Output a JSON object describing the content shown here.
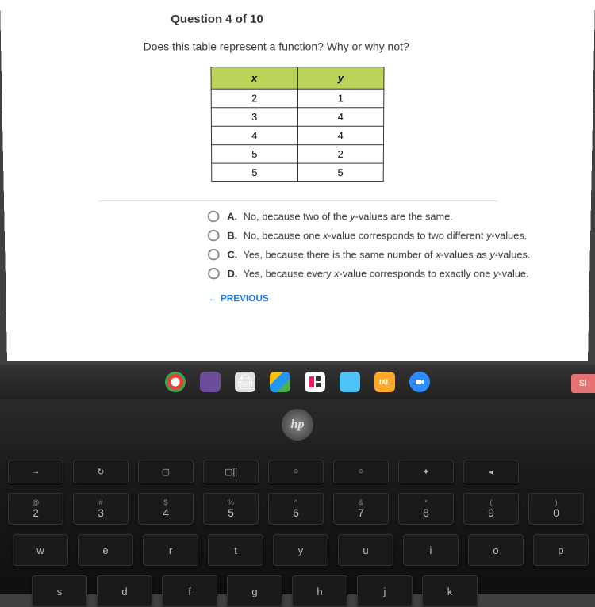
{
  "header": "Question 4 of 10",
  "question": "Does this table represent a function? Why or why not?",
  "table": {
    "header_x": "x",
    "header_y": "y",
    "rows": [
      {
        "x": "2",
        "y": "1"
      },
      {
        "x": "3",
        "y": "4"
      },
      {
        "x": "4",
        "y": "4"
      },
      {
        "x": "5",
        "y": "2"
      },
      {
        "x": "5",
        "y": "5"
      }
    ],
    "header_bg": "#bcd35a"
  },
  "options": {
    "a": {
      "letter": "A.",
      "text_pre": "No, because two of the ",
      "ital1": "y",
      "text_post": "-values are the same."
    },
    "b": {
      "letter": "B.",
      "text_pre": "No, because one ",
      "ital1": "x",
      "mid": "-value corresponds to two different ",
      "ital2": "y",
      "text_post": "-values."
    },
    "c": {
      "letter": "C.",
      "text_pre": "Yes, because there is the same number of ",
      "ital1": "x",
      "mid": "-values as ",
      "ital2": "y",
      "text_post": "-values."
    },
    "d": {
      "letter": "D.",
      "text_pre": "Yes, because every ",
      "ital1": "x",
      "mid": "-value corresponds to exactly one ",
      "ital2": "y",
      "text_post": "-value."
    }
  },
  "previous": "PREVIOUS",
  "hp": "hp",
  "sign": "SI",
  "ixl": "IXL",
  "keyboard": {
    "fnrow": [
      "→",
      "↻",
      "▢",
      "▢||",
      "○",
      "○",
      "✦",
      "◂"
    ],
    "numrow": [
      {
        "s": "@",
        "m": "2"
      },
      {
        "s": "#",
        "m": "3"
      },
      {
        "s": "$",
        "m": "4"
      },
      {
        "s": "%",
        "m": "5"
      },
      {
        "s": "^",
        "m": "6"
      },
      {
        "s": "&",
        "m": "7"
      },
      {
        "s": "*",
        "m": "8"
      },
      {
        "s": "(",
        "m": "9"
      },
      {
        "s": ")",
        "m": "0"
      }
    ],
    "row2": [
      "w",
      "e",
      "r",
      "t",
      "y",
      "u",
      "i",
      "o",
      "p"
    ],
    "row3": [
      "s",
      "d",
      "f",
      "g",
      "h",
      "j",
      "k"
    ]
  }
}
